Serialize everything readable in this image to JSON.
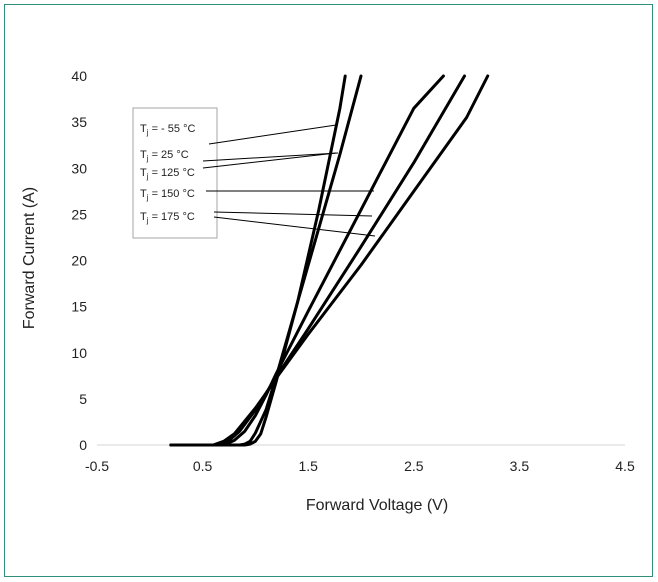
{
  "chart_data": {
    "type": "line",
    "title": "",
    "xlabel": "Forward Voltage (V)",
    "ylabel": "Forward Current (A)",
    "xlim": [
      -0.5,
      4.5
    ],
    "ylim": [
      0,
      40
    ],
    "xticks": [
      "-0.5",
      "0.5",
      "1.5",
      "2.5",
      "3.5",
      "4.5"
    ],
    "yticks": [
      "0",
      "5",
      "10",
      "15",
      "20",
      "25",
      "30",
      "35",
      "40"
    ],
    "grid": false,
    "legend_position": "top-left",
    "line_color": "#000000",
    "series": [
      {
        "name": "Tj = - 55 °C",
        "x": [
          0.2,
          0.9,
          0.95,
          1.0,
          1.05,
          1.1,
          1.2,
          1.4,
          1.6,
          1.8,
          1.85
        ],
        "y": [
          0,
          0,
          0.1,
          0.4,
          1.2,
          3,
          7,
          15.5,
          25.5,
          36.5,
          40
        ]
      },
      {
        "name": "Tj =  25 °C",
        "x": [
          0.2,
          0.85,
          0.9,
          0.95,
          1.0,
          1.1,
          1.2,
          1.4,
          1.6,
          1.8,
          2.0
        ],
        "y": [
          0,
          0,
          0.1,
          0.4,
          1.3,
          3.8,
          7.5,
          15.5,
          23.5,
          31.5,
          40
        ]
      },
      {
        "name": "Tj = 125 °C",
        "x": [
          0.2,
          0.7,
          0.8,
          0.9,
          1.0,
          1.1,
          1.2,
          1.5,
          2.0,
          2.5,
          2.78
        ],
        "y": [
          0,
          0,
          0.5,
          1.5,
          3.2,
          5.4,
          7.8,
          14.5,
          25.5,
          36.5,
          40
        ]
      },
      {
        "name": "Tj = 150 °C",
        "x": [
          0.2,
          0.65,
          0.75,
          0.85,
          1.0,
          1.1,
          1.2,
          1.5,
          2.0,
          2.5,
          2.98
        ],
        "y": [
          0,
          0,
          0.5,
          1.5,
          3.8,
          5.6,
          7.4,
          12.6,
          21.5,
          30.6,
          40
        ]
      },
      {
        "name": "Tj = 175 °C",
        "x": [
          0.2,
          0.6,
          0.7,
          0.8,
          1.0,
          1.1,
          1.2,
          1.5,
          2.0,
          2.5,
          3.0,
          3.2
        ],
        "y": [
          0,
          0,
          0.4,
          1.2,
          4.0,
          5.6,
          7.3,
          12.0,
          19.5,
          27.5,
          35.5,
          40
        ]
      }
    ]
  },
  "legend": {
    "labels": [
      {
        "prefix": "T",
        "sub": "j",
        "suffix": " = - 55 °C"
      },
      {
        "prefix": "T",
        "sub": "j",
        "suffix": " =  25 °C"
      },
      {
        "prefix": "T",
        "sub": "j",
        "suffix": " = 125 °C"
      },
      {
        "prefix": "T",
        "sub": "j",
        "suffix": " = 150 °C"
      },
      {
        "prefix": "T",
        "sub": "j",
        "suffix": " = 175 °C"
      }
    ]
  }
}
